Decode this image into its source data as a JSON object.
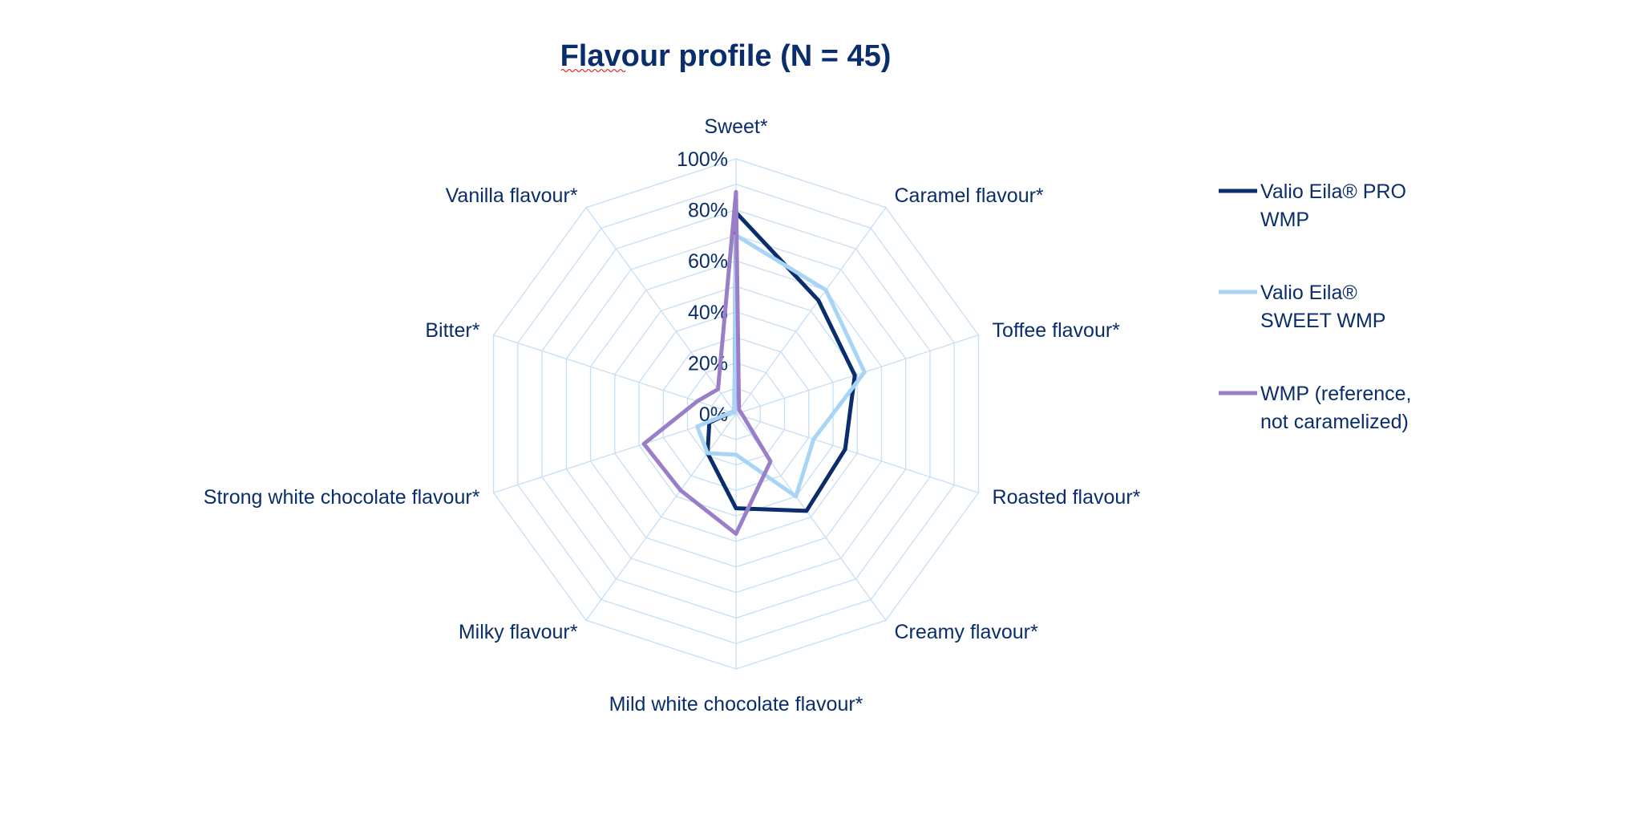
{
  "chart_data": {
    "type": "radar",
    "title": "Flavour profile (N = 45)",
    "categories": [
      "Sweet*",
      "Caramel flavour*",
      "Toffee flavour*",
      "Roasted flavour*",
      "Creamy flavour*",
      "Mild white chocolate flavour*",
      "Milky flavour*",
      "Strong white chocolate flavour*",
      "Bitter*",
      "Vanilla flavour*"
    ],
    "axis": {
      "min": 0,
      "max": 100,
      "ticks": [
        0,
        20,
        40,
        60,
        80,
        100
      ],
      "tick_labels": [
        "0%",
        "20%",
        "40%",
        "60%",
        "80%",
        "100%"
      ]
    },
    "grid": true,
    "legend_position": "right",
    "series": [
      {
        "name": "Valio Eila®  PRO WMP",
        "color": "#0a2d6b",
        "values": [
          79,
          55,
          49,
          45,
          47,
          37,
          19,
          11,
          2,
          1
        ]
      },
      {
        "name": "Valio Eila®  SWEET WMP",
        "color": "#a8d5f5",
        "values": [
          70,
          60,
          53,
          32,
          40,
          16,
          19,
          16,
          2,
          1
        ]
      },
      {
        "name": "WMP (reference, not caramelized)",
        "color": "#9b7ec8",
        "values": [
          87,
          2,
          2,
          3,
          23,
          47,
          37,
          38,
          16,
          12
        ]
      }
    ],
    "colors": {
      "text": "#0a2d6b",
      "grid": "#c6dff5"
    }
  }
}
